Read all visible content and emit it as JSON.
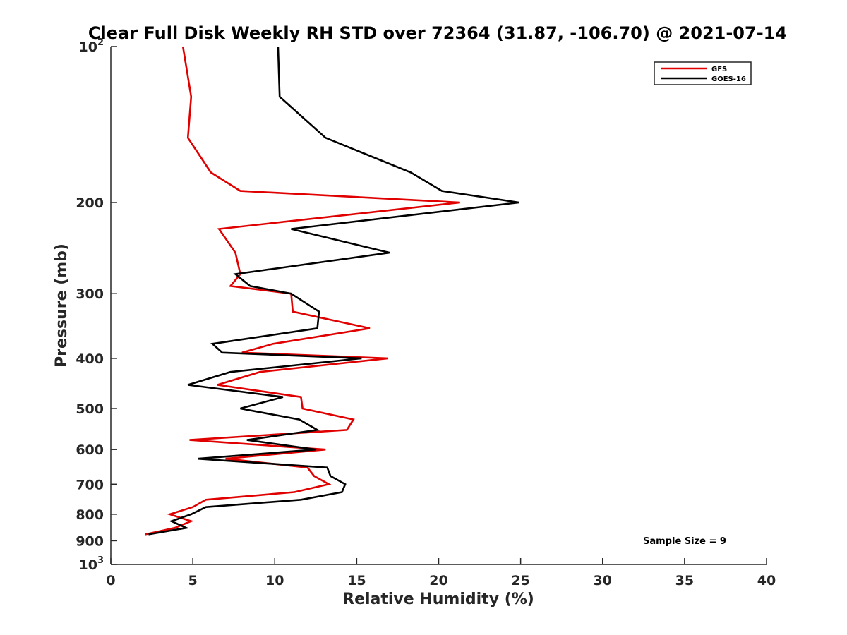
{
  "chart_data": {
    "type": "line",
    "title": "Clear Full Disk Weekly RH STD over 72364 (31.87, -106.70) @ 2021-07-14",
    "xlabel": "Relative Humidity (%)",
    "ylabel": "Pressure (mb)",
    "xlim": [
      0,
      40
    ],
    "ylim": [
      100,
      1000
    ],
    "y_scale": "log",
    "y_reversed": true,
    "x_ticks": [
      "0",
      "5",
      "10",
      "15",
      "20",
      "25",
      "30",
      "35",
      "40"
    ],
    "y_ticks": [
      {
        "value": 100,
        "base": "10",
        "exp": "2"
      },
      {
        "value": 200,
        "label": "200"
      },
      {
        "value": 300,
        "label": "300"
      },
      {
        "value": 400,
        "label": "400"
      },
      {
        "value": 500,
        "label": "500"
      },
      {
        "value": 600,
        "label": "600"
      },
      {
        "value": 700,
        "label": "700"
      },
      {
        "value": 800,
        "label": "800"
      },
      {
        "value": 900,
        "label": "900"
      },
      {
        "value": 1000,
        "base": "10",
        "exp": "3"
      }
    ],
    "grid": false,
    "legend_position": "top-right",
    "annotation": "Sample Size = 9",
    "series": [
      {
        "name": "GFS",
        "color": "#e00000",
        "points": [
          [
            4.4,
            100
          ],
          [
            4.9,
            125
          ],
          [
            4.7,
            150
          ],
          [
            6.1,
            175
          ],
          [
            7.9,
            190
          ],
          [
            21.3,
            200
          ],
          [
            6.6,
            225
          ],
          [
            7.6,
            250
          ],
          [
            7.9,
            275
          ],
          [
            7.3,
            290
          ],
          [
            11.0,
            300
          ],
          [
            11.1,
            325
          ],
          [
            15.8,
            350
          ],
          [
            9.9,
            375
          ],
          [
            8.0,
            390
          ],
          [
            16.9,
            400
          ],
          [
            9.1,
            425
          ],
          [
            6.5,
            450
          ],
          [
            11.6,
            475
          ],
          [
            11.7,
            500
          ],
          [
            14.8,
            525
          ],
          [
            14.4,
            550
          ],
          [
            4.8,
            575
          ],
          [
            13.1,
            600
          ],
          [
            7.0,
            625
          ],
          [
            12.0,
            650
          ],
          [
            12.4,
            675
          ],
          [
            13.3,
            700
          ],
          [
            11.2,
            725
          ],
          [
            5.8,
            750
          ],
          [
            5.0,
            775
          ],
          [
            3.6,
            800
          ],
          [
            4.9,
            825
          ],
          [
            3.9,
            850
          ],
          [
            2.1,
            875
          ]
        ]
      },
      {
        "name": "GOES-16",
        "color": "#000000",
        "points": [
          [
            10.2,
            100
          ],
          [
            10.3,
            125
          ],
          [
            13.1,
            150
          ],
          [
            18.3,
            175
          ],
          [
            20.2,
            190
          ],
          [
            24.9,
            200
          ],
          [
            11.0,
            225
          ],
          [
            17.0,
            250
          ],
          [
            7.6,
            275
          ],
          [
            8.5,
            290
          ],
          [
            11.0,
            300
          ],
          [
            12.7,
            325
          ],
          [
            12.6,
            350
          ],
          [
            6.2,
            375
          ],
          [
            6.8,
            390
          ],
          [
            15.3,
            400
          ],
          [
            7.3,
            425
          ],
          [
            4.7,
            450
          ],
          [
            10.5,
            475
          ],
          [
            7.9,
            500
          ],
          [
            11.5,
            525
          ],
          [
            12.6,
            550
          ],
          [
            8.3,
            575
          ],
          [
            12.5,
            600
          ],
          [
            5.3,
            625
          ],
          [
            13.2,
            650
          ],
          [
            13.4,
            675
          ],
          [
            14.3,
            700
          ],
          [
            14.1,
            725
          ],
          [
            11.6,
            750
          ],
          [
            5.8,
            775
          ],
          [
            4.9,
            800
          ],
          [
            3.7,
            825
          ],
          [
            4.6,
            850
          ],
          [
            2.3,
            875
          ]
        ]
      }
    ]
  }
}
